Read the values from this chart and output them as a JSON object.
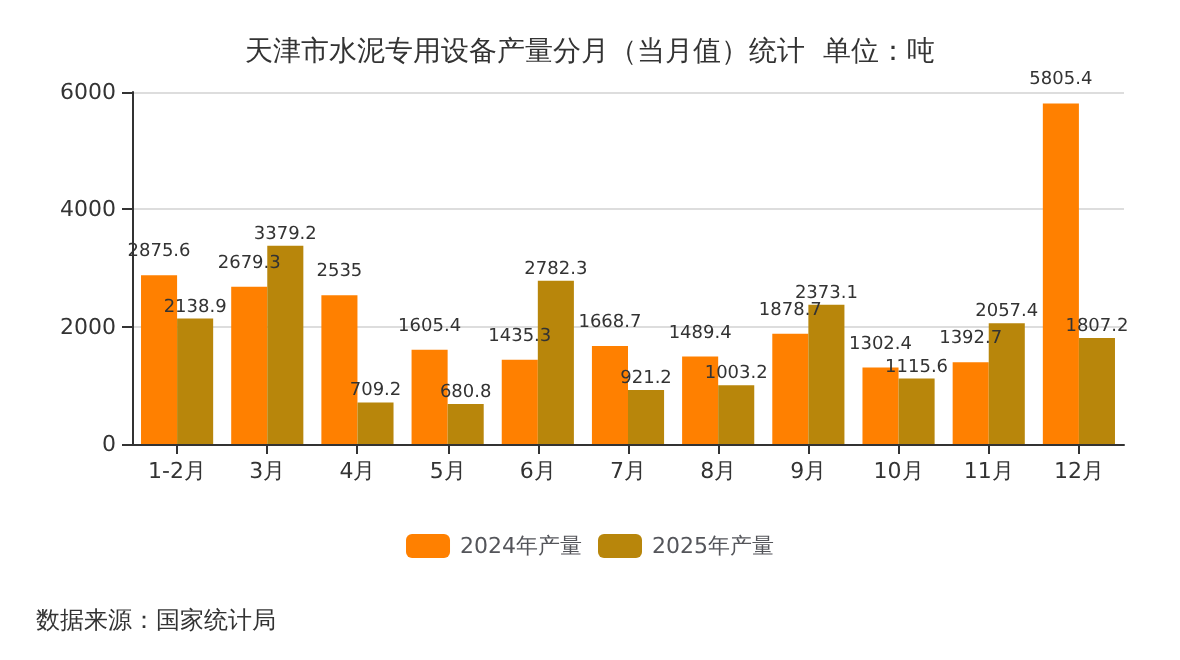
{
  "chart_data": {
    "type": "bar",
    "title": "天津市水泥专用设备产量分月（当月值）统计  单位：吨",
    "categories": [
      "1-2月",
      "3月",
      "4月",
      "5月",
      "6月",
      "7月",
      "8月",
      "9月",
      "10月",
      "11月",
      "12月"
    ],
    "series": [
      {
        "name": "2024年产量",
        "color": "#ff8000",
        "values": [
          2875.6,
          2679.3,
          2535,
          1605.4,
          1435.3,
          1668.7,
          1489.4,
          1878.7,
          1302.4,
          1392.7,
          5805.4
        ]
      },
      {
        "name": "2025年产量",
        "color": "#b8860b",
        "values": [
          2138.9,
          3379.2,
          709.2,
          680.8,
          2782.3,
          921.2,
          1003.2,
          2373.1,
          1115.6,
          2057.4,
          1807.2
        ]
      }
    ],
    "ylim": [
      0,
      6000
    ],
    "yticks": [
      0,
      2000,
      4000,
      6000
    ],
    "grid": "y",
    "legend": "bottom",
    "data_labels": true,
    "annotations": [
      "数据来源：国家统计局"
    ]
  }
}
